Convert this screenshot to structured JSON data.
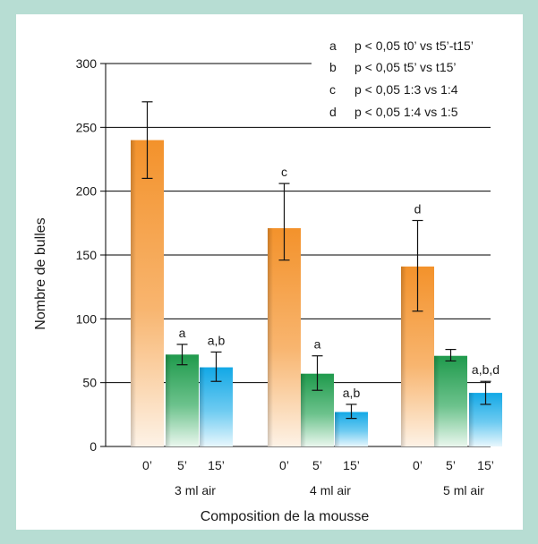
{
  "chart_data": {
    "type": "bar",
    "xlabel": "Composition de la mousse",
    "ylabel": "Nombre de bulles",
    "ylim": [
      0,
      300
    ],
    "yticks": [
      0,
      50,
      100,
      150,
      200,
      250,
      300
    ],
    "grid": true,
    "legend_position": "top-right",
    "groups": [
      {
        "label": "3 ml air",
        "bars": [
          {
            "time": "0’",
            "value": 240,
            "err_low": 210,
            "err_high": 270,
            "sig": "",
            "color": "orange"
          },
          {
            "time": "5’",
            "value": 72,
            "err_low": 64,
            "err_high": 80,
            "sig": "a",
            "color": "green"
          },
          {
            "time": "15’",
            "value": 62,
            "err_low": 51,
            "err_high": 74,
            "sig": "a,b",
            "color": "blue"
          }
        ]
      },
      {
        "label": "4 ml air",
        "bars": [
          {
            "time": "0’",
            "value": 171,
            "err_low": 146,
            "err_high": 206,
            "sig": "c",
            "color": "orange"
          },
          {
            "time": "5’",
            "value": 57,
            "err_low": 44,
            "err_high": 71,
            "sig": "a",
            "color": "green"
          },
          {
            "time": "15’",
            "value": 27,
            "err_low": 22,
            "err_high": 33,
            "sig": "a,b",
            "color": "blue"
          }
        ]
      },
      {
        "label": "5 ml air",
        "bars": [
          {
            "time": "0’",
            "value": 141,
            "err_low": 106,
            "err_high": 177,
            "sig": "d",
            "color": "orange"
          },
          {
            "time": "5’",
            "value": 71,
            "err_low": 67,
            "err_high": 76,
            "sig": "",
            "color": "green"
          },
          {
            "time": "15’",
            "value": 42,
            "err_low": 33,
            "err_high": 51,
            "sig": "a,b,d",
            "color": "blue"
          }
        ]
      }
    ],
    "legend": [
      {
        "key": "a",
        "text": "p < 0,05 t0’ vs t5’-t15’"
      },
      {
        "key": "b",
        "text": "p < 0,05 t5’ vs t15’"
      },
      {
        "key": "c",
        "text": "p < 0,05 1:3 vs 1:4"
      },
      {
        "key": "d",
        "text": "p < 0,05 1:4 vs 1:5"
      }
    ],
    "colors": {
      "frame_background": "#b7ddd3",
      "orange": "#f3922b",
      "green": "#1f9a4c",
      "blue": "#12a8e6",
      "grid": "#000000"
    }
  }
}
